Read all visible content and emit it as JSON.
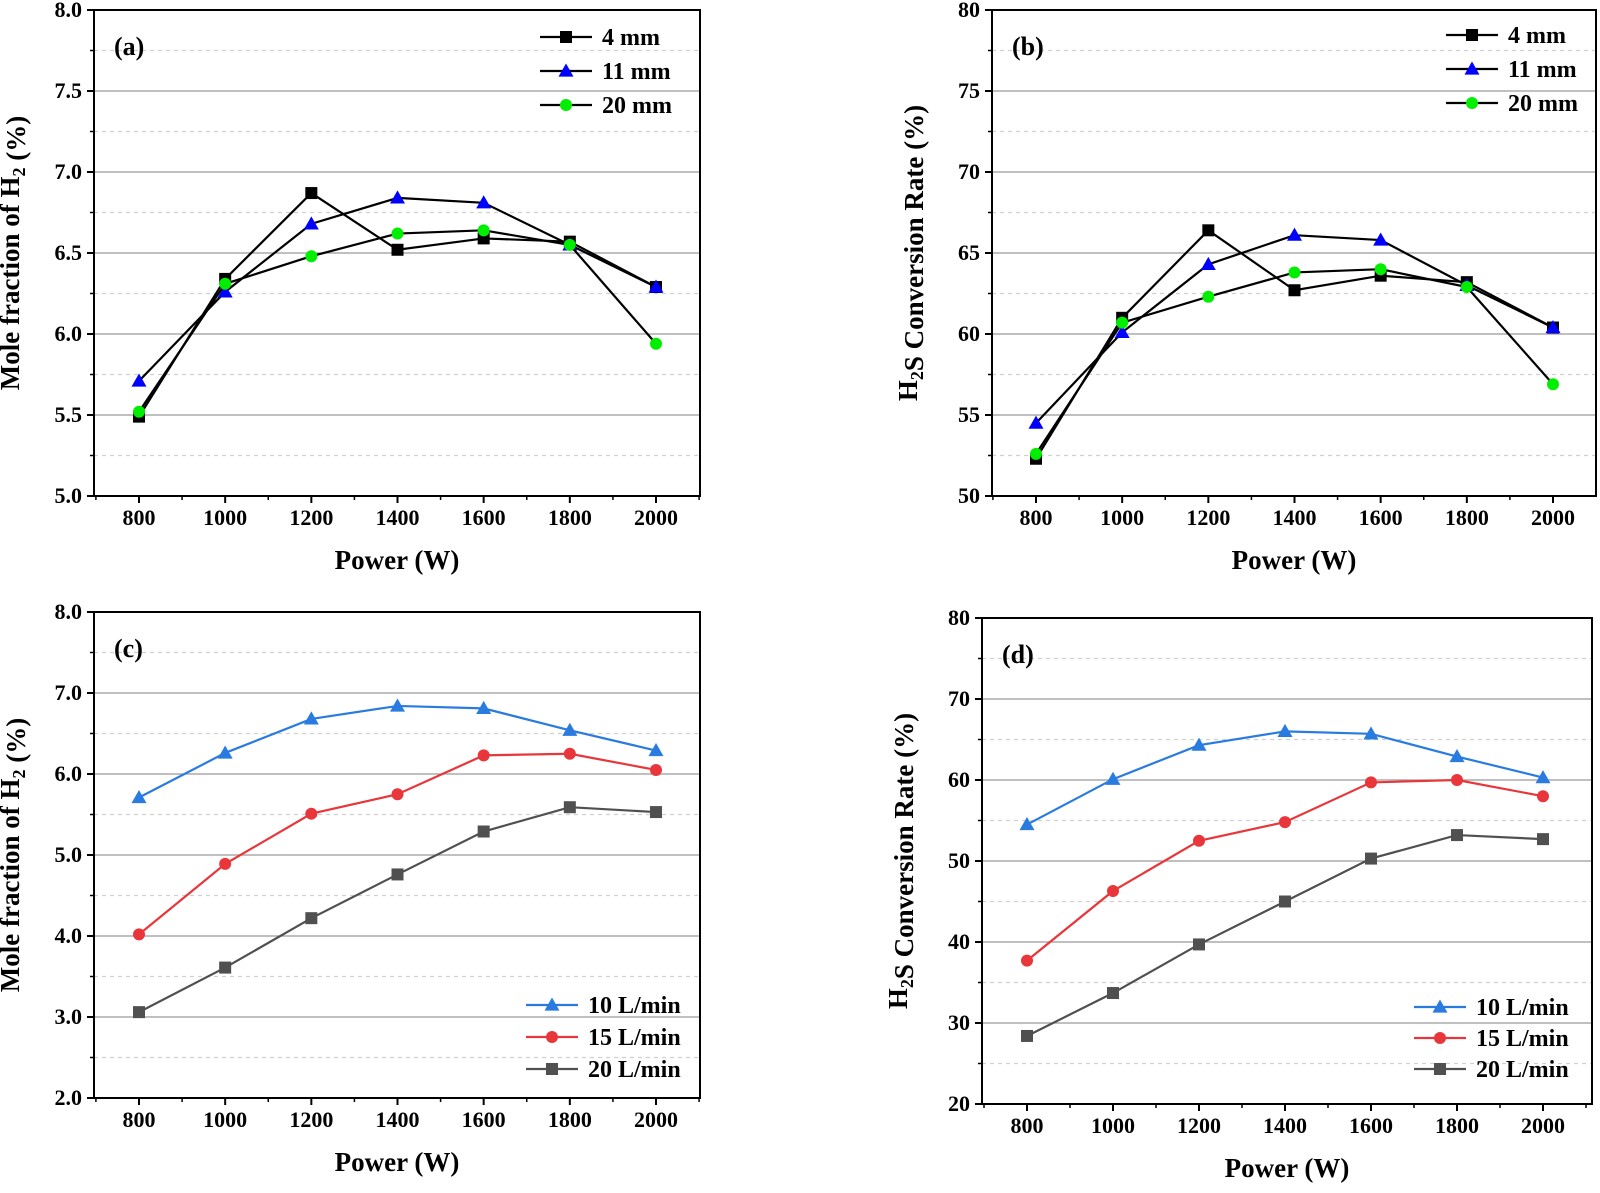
{
  "chart_data": [
    {
      "panel": "(a)",
      "type": "line",
      "xlabel": "Power (W)",
      "ylabel": "Mole fraction of H₂ (%)",
      "x": [
        800,
        1000,
        1200,
        1400,
        1600,
        1800,
        2000
      ],
      "xticks": [
        "800",
        "1000",
        "1200",
        "1400",
        "1600",
        "1800",
        "2000"
      ],
      "xlim": [
        700,
        2100
      ],
      "ylim": [
        5.0,
        8.0
      ],
      "yticks": [
        "5.0",
        "5.5",
        "6.0",
        "6.5",
        "7.0",
        "7.5",
        "8.0"
      ],
      "minor_grid": [
        5.25,
        5.75,
        6.25,
        6.75,
        7.25,
        7.75
      ],
      "legend_position": "top-right",
      "series": [
        {
          "name": "4 mm",
          "marker": "square",
          "line_color": "#000000",
          "marker_color": "#000000",
          "values": [
            5.49,
            6.34,
            6.87,
            6.52,
            6.59,
            6.57,
            6.29
          ]
        },
        {
          "name": "11 mm",
          "marker": "triangle",
          "line_color": "#000000",
          "marker_color": "#0000ff",
          "values": [
            5.71,
            6.26,
            6.68,
            6.84,
            6.81,
            6.55,
            6.29
          ]
        },
        {
          "name": "20 mm",
          "marker": "circle",
          "line_color": "#000000",
          "marker_color": "#00ee00",
          "values": [
            5.52,
            6.31,
            6.48,
            6.62,
            6.64,
            6.55,
            5.94
          ]
        }
      ]
    },
    {
      "panel": "(b)",
      "type": "line",
      "xlabel": "Power (W)",
      "ylabel": "H₂S Conversion Rate (%)",
      "x": [
        800,
        1000,
        1200,
        1400,
        1600,
        1800,
        2000
      ],
      "xticks": [
        "800",
        "1000",
        "1200",
        "1400",
        "1600",
        "1800",
        "2000"
      ],
      "xlim": [
        700,
        2100
      ],
      "ylim": [
        50,
        80
      ],
      "yticks": [
        "50",
        "55",
        "60",
        "65",
        "70",
        "75",
        "80"
      ],
      "minor_grid": [
        52.5,
        57.5,
        62.5,
        67.5,
        72.5,
        77.5
      ],
      "legend_position": "top-right",
      "series": [
        {
          "name": "4 mm",
          "marker": "square",
          "line_color": "#000000",
          "marker_color": "#000000",
          "values": [
            52.3,
            61.0,
            66.4,
            62.7,
            63.6,
            63.2,
            60.4
          ]
        },
        {
          "name": "11 mm",
          "marker": "triangle",
          "line_color": "#000000",
          "marker_color": "#0000ff",
          "values": [
            54.5,
            60.1,
            64.3,
            66.1,
            65.8,
            63.0,
            60.4
          ]
        },
        {
          "name": "20 mm",
          "marker": "circle",
          "line_color": "#000000",
          "marker_color": "#00ee00",
          "values": [
            52.6,
            60.7,
            62.3,
            63.8,
            64.0,
            62.9,
            56.9
          ]
        }
      ]
    },
    {
      "panel": "(c)",
      "type": "line",
      "xlabel": "Power (W)",
      "ylabel": "Mole fraction of H₂ (%)",
      "x": [
        800,
        1000,
        1200,
        1400,
        1600,
        1800,
        2000
      ],
      "xticks": [
        "800",
        "1000",
        "1200",
        "1400",
        "1600",
        "1800",
        "2000"
      ],
      "xlim": [
        700,
        2100
      ],
      "ylim": [
        2.0,
        8.0
      ],
      "yticks": [
        "2.0",
        "3.0",
        "4.0",
        "5.0",
        "6.0",
        "7.0",
        "8.0"
      ],
      "minor_grid": [
        2.5,
        3.5,
        4.5,
        5.5,
        6.5,
        7.5
      ],
      "legend_position": "bottom-right",
      "series": [
        {
          "name": "10 L/min",
          "marker": "triangle",
          "line_color": "#2a7be0",
          "marker_color": "#2a7be0",
          "values": [
            5.71,
            6.26,
            6.68,
            6.84,
            6.81,
            6.54,
            6.29
          ]
        },
        {
          "name": "15 L/min",
          "marker": "circle",
          "line_color": "#e8363a",
          "marker_color": "#e8363a",
          "values": [
            4.02,
            4.89,
            5.51,
            5.75,
            6.23,
            6.25,
            6.05
          ]
        },
        {
          "name": "20 L/min",
          "marker": "square",
          "line_color": "#505050",
          "marker_color": "#505050",
          "values": [
            3.06,
            3.61,
            4.22,
            4.76,
            5.29,
            5.59,
            5.53
          ]
        }
      ]
    },
    {
      "panel": "(d)",
      "type": "line",
      "xlabel": "Power (W)",
      "ylabel": "H₂S Conversion Rate (%)",
      "x": [
        800,
        1000,
        1200,
        1400,
        1600,
        1800,
        2000
      ],
      "xticks": [
        "800",
        "1000",
        "1200",
        "1400",
        "1600",
        "1800",
        "2000"
      ],
      "xlim": [
        700,
        2100
      ],
      "ylim": [
        20,
        80
      ],
      "yticks": [
        "20",
        "30",
        "40",
        "50",
        "60",
        "70",
        "80"
      ],
      "minor_grid": [
        25,
        35,
        45,
        55,
        65,
        75
      ],
      "legend_position": "bottom-right",
      "series": [
        {
          "name": "10 L/min",
          "marker": "triangle",
          "line_color": "#2a7be0",
          "marker_color": "#2a7be0",
          "values": [
            54.5,
            60.1,
            64.3,
            66.0,
            65.7,
            62.9,
            60.3
          ]
        },
        {
          "name": "15 L/min",
          "marker": "circle",
          "line_color": "#e8363a",
          "marker_color": "#e8363a",
          "values": [
            37.7,
            46.3,
            52.5,
            54.8,
            59.7,
            60.0,
            58.0
          ]
        },
        {
          "name": "20 L/min",
          "marker": "square",
          "line_color": "#505050",
          "marker_color": "#505050",
          "values": [
            28.4,
            33.7,
            39.7,
            45.0,
            50.3,
            53.2,
            52.7
          ]
        }
      ]
    }
  ]
}
